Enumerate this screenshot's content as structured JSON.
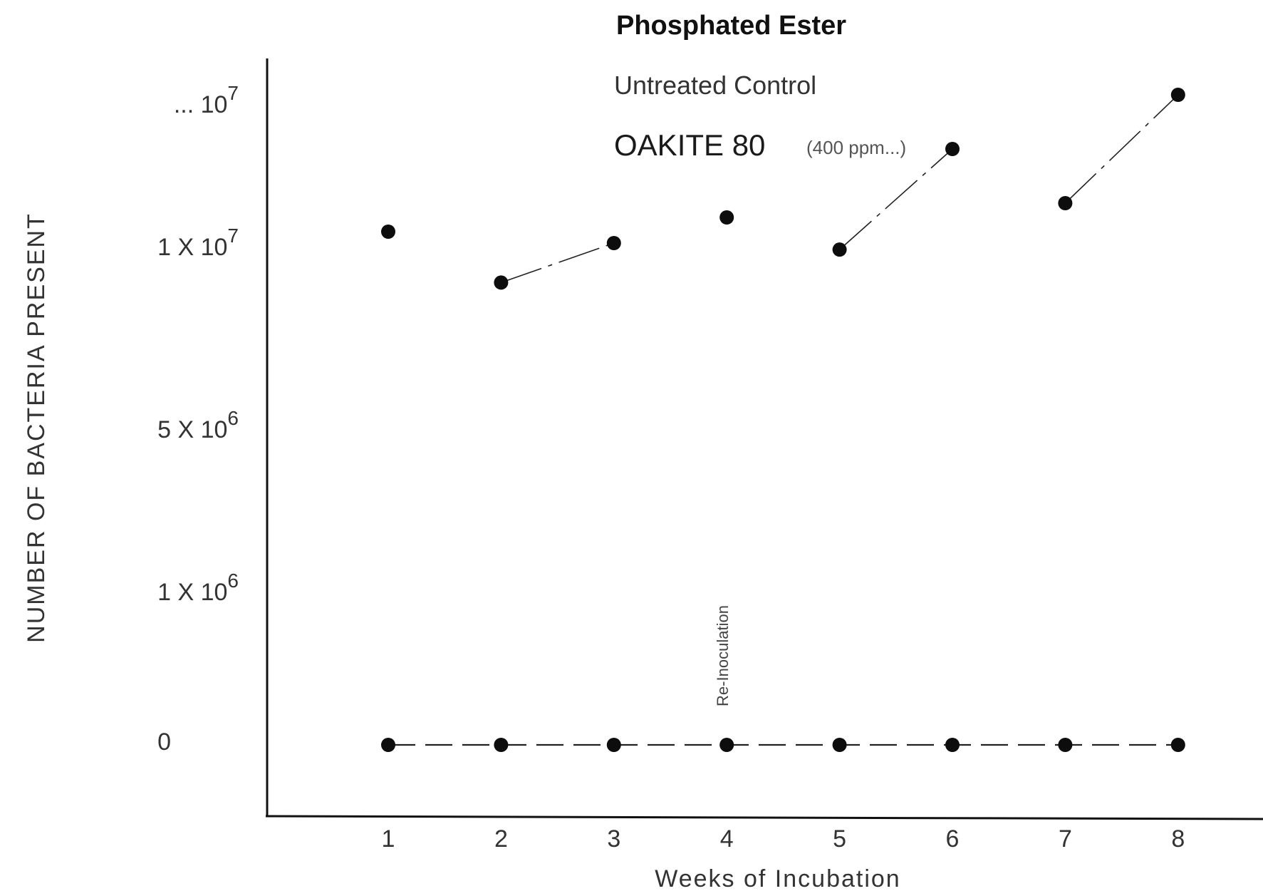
{
  "chart_data": {
    "type": "scatter",
    "title": "Phosphated Ester",
    "legend": {
      "placement": "top-center",
      "entries": [
        "Untreated Control",
        "OAKITE 80"
      ],
      "entry_note": "(400 ppm...)"
    },
    "xlabel": "Weeks of Incubation",
    "ylabel": "NUMBER OF BACTERIA PRESENT",
    "x_ticks": [
      "1",
      "2",
      "3",
      "4",
      "5",
      "6",
      "7",
      "8"
    ],
    "y_ticks": [
      {
        "label": "0",
        "value": 0
      },
      {
        "label": "1 X 10",
        "exp": "6",
        "value": 1000000
      },
      {
        "label": "5 X 10",
        "exp": "6",
        "value": 5000000
      },
      {
        "label": "1 X 10",
        "exp": "7",
        "value": 10000000
      },
      {
        "label": "... 10",
        "exp": "7",
        "value": 15000000
      }
    ],
    "y_scale": "nonlinear (tick marks evenly spaced)",
    "grid": false,
    "annotation": {
      "text": "Re-Inoculation",
      "x": 4
    },
    "series": [
      {
        "name": "Untreated Control",
        "x": [
          1,
          2,
          3,
          4,
          5,
          6,
          7,
          8
        ],
        "y": [
          10500000,
          9000000,
          10100000,
          11000000,
          9900000,
          13400000,
          11500000,
          15300000
        ],
        "connections": [
          [
            2,
            3
          ],
          [
            5,
            6
          ],
          [
            7,
            8
          ]
        ]
      },
      {
        "name": "OAKITE 80",
        "x": [
          1,
          2,
          3,
          4,
          5,
          6,
          7,
          8
        ],
        "y": [
          0,
          0,
          0,
          0,
          0,
          0,
          0,
          0
        ],
        "line": "dashed"
      }
    ]
  }
}
